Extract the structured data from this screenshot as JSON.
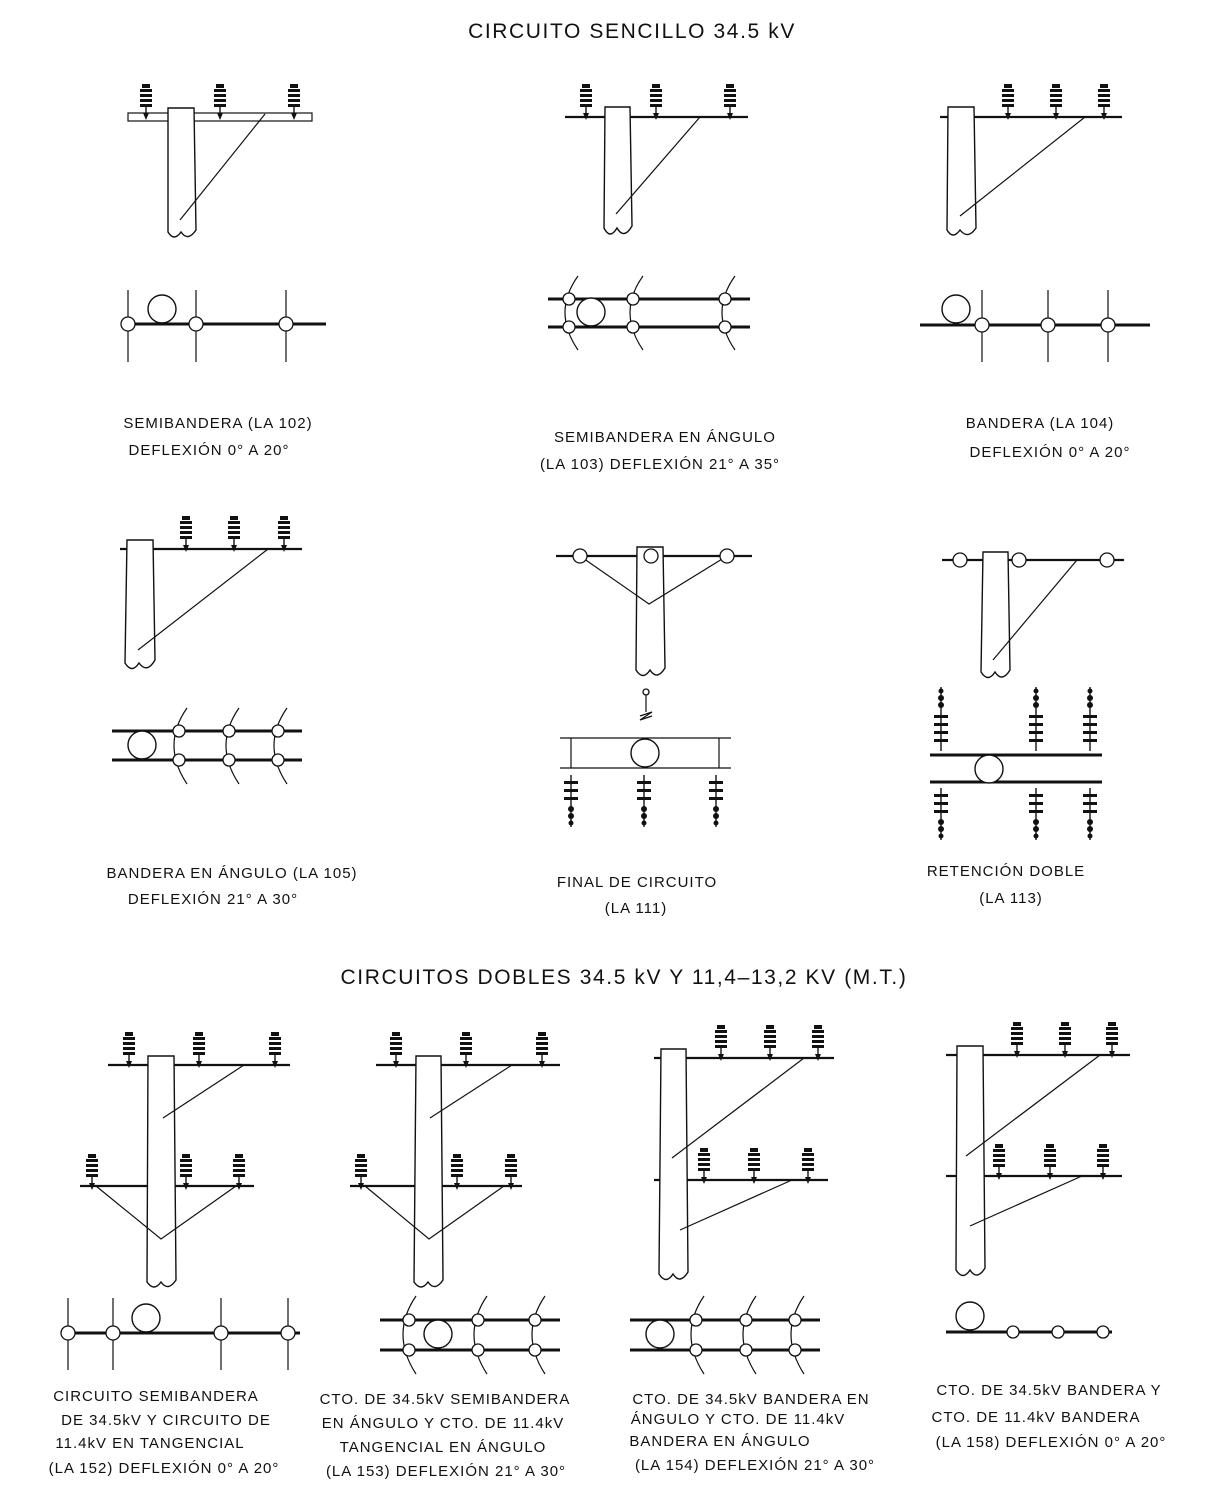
{
  "header_single": "CIRCUITO SENCILLO 34.5 kV",
  "header_double": "CIRCUITOS DOBLES 34.5 kV Y 11,4–13,2 KV (M.T.)",
  "structures": [
    {
      "id": "la102",
      "lines": [
        "SEMIBANDERA (LA 102)",
        "DEFLEXIÓN 0° A 20°"
      ]
    },
    {
      "id": "la103",
      "lines": [
        "SEMIBANDERA  EN ÁNGULO",
        "(LA 103) DEFLEXIÓN 21° A 35°"
      ]
    },
    {
      "id": "la104",
      "lines": [
        "BANDERA (LA 104)",
        "DEFLEXIÓN 0° A 20°"
      ]
    },
    {
      "id": "la105",
      "lines": [
        "BANDERA EN ÁNGULO (LA 105)",
        "DEFLEXIÓN 21° A 30°"
      ]
    },
    {
      "id": "la111",
      "lines": [
        "FINAL DE CIRCUITO",
        "(LA 111)"
      ]
    },
    {
      "id": "la113",
      "lines": [
        "RETENCIÓN DOBLE",
        "(LA 113)"
      ]
    },
    {
      "id": "la152",
      "lines": [
        "CIRCUITO SEMIBANDERA",
        "DE 34.5kV Y CIRCUITO DE",
        "11.4kV EN TANGENCIAL",
        "(LA 152) DEFLEXIÓN 0° A 20°"
      ]
    },
    {
      "id": "la153",
      "lines": [
        "CTO. DE 34.5kV SEMIBANDERA",
        "EN ÁNGULO Y CTO. DE 11.4kV",
        "TANGENCIAL EN ÁNGULO",
        "(LA 153) DEFLEXIÓN 21° A 30°"
      ]
    },
    {
      "id": "la154",
      "lines": [
        "CTO. DE 34.5kV BANDERA EN",
        "ÁNGULO Y CTO. DE 11.4kV",
        "BANDERA EN ÁNGULO",
        "(LA 154) DEFLEXIÓN 21° A 30°"
      ]
    },
    {
      "id": "la158",
      "lines": [
        "CTO. DE 34.5kV BANDERA Y",
        "CTO. DE 11.4kV BANDERA",
        "(LA 158) DEFLEXIÓN 0° A 20°"
      ]
    }
  ]
}
